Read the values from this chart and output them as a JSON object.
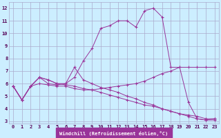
{
  "xlabel": "Windchill (Refroidissement éolien,°C)",
  "background_color": "#cceeff",
  "grid_color": "#aaaacc",
  "line_color": "#993399",
  "xlim": [
    -0.5,
    23.5
  ],
  "ylim": [
    2.8,
    12.5
  ],
  "yticks": [
    3,
    4,
    5,
    6,
    7,
    8,
    9,
    10,
    11,
    12
  ],
  "xticks": [
    0,
    1,
    2,
    3,
    4,
    5,
    6,
    7,
    8,
    9,
    10,
    11,
    12,
    13,
    14,
    15,
    16,
    17,
    18,
    19,
    20,
    21,
    22,
    23
  ],
  "series": [
    {
      "x": [
        0,
        1,
        2,
        3,
        4,
        5,
        6,
        7,
        8,
        9,
        10,
        11,
        12,
        13,
        14,
        15,
        16,
        17,
        18,
        19,
        20,
        21,
        22,
        23
      ],
      "y": [
        5.8,
        4.7,
        5.8,
        6.5,
        6.0,
        5.9,
        6.0,
        6.5,
        7.8,
        8.8,
        10.4,
        10.6,
        11.0,
        11.0,
        10.5,
        11.8,
        12.0,
        11.3,
        7.3,
        7.3,
        4.5,
        3.2,
        3.1,
        3.2
      ]
    },
    {
      "x": [
        0,
        1,
        2,
        3,
        4,
        5,
        6,
        7,
        8,
        9,
        10,
        11,
        12,
        13,
        14,
        15,
        16,
        17,
        18,
        19,
        20,
        21,
        22,
        23
      ],
      "y": [
        5.8,
        4.7,
        5.8,
        6.0,
        5.9,
        5.8,
        5.8,
        5.6,
        5.5,
        5.5,
        5.6,
        5.7,
        5.8,
        5.9,
        6.0,
        6.2,
        6.5,
        6.8,
        7.0,
        7.3,
        7.3,
        7.3,
        7.3,
        7.3
      ]
    },
    {
      "x": [
        0,
        1,
        2,
        3,
        4,
        5,
        6,
        7,
        8,
        9,
        10,
        11,
        12,
        13,
        14,
        15,
        16,
        17,
        18,
        19,
        20,
        21,
        22,
        23
      ],
      "y": [
        5.8,
        4.7,
        5.8,
        6.5,
        6.3,
        6.0,
        6.0,
        7.3,
        6.3,
        6.0,
        5.7,
        5.5,
        5.3,
        5.0,
        4.8,
        4.5,
        4.3,
        4.0,
        3.8,
        3.6,
        3.4,
        3.2,
        3.1,
        3.1
      ]
    },
    {
      "x": [
        0,
        1,
        2,
        3,
        4,
        5,
        6,
        7,
        8,
        9,
        10,
        11,
        12,
        13,
        14,
        15,
        16,
        17,
        18,
        19,
        20,
        21,
        22,
        23
      ],
      "y": [
        5.8,
        4.7,
        5.8,
        6.5,
        6.3,
        6.0,
        5.9,
        5.8,
        5.6,
        5.5,
        5.3,
        5.1,
        4.9,
        4.7,
        4.5,
        4.3,
        4.2,
        4.0,
        3.8,
        3.6,
        3.5,
        3.4,
        3.2,
        3.2
      ]
    }
  ]
}
